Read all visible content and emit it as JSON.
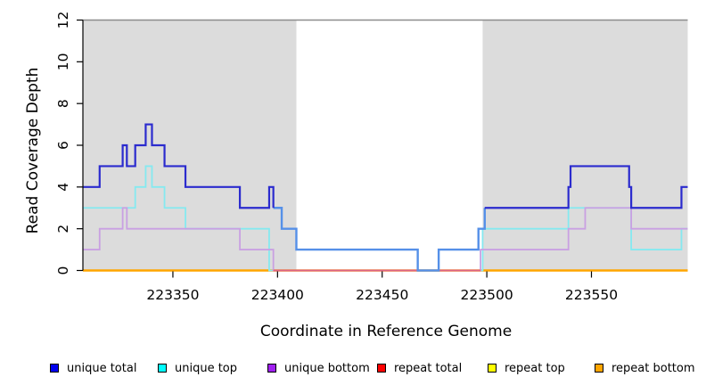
{
  "chart_data": {
    "type": "line",
    "subtype": "step",
    "title": "",
    "xlabel": "Coordinate in Reference Genome",
    "ylabel": "Read Coverage Depth",
    "x_range": [
      223307,
      223596
    ],
    "y_range": [
      0,
      12
    ],
    "x_ticks": [
      223350,
      223400,
      223450,
      223500,
      223550
    ],
    "y_ticks": [
      0,
      2,
      4,
      6,
      8,
      10,
      12
    ],
    "grid": false,
    "legend_position": "bottom",
    "top_border_color": "#8C8C8C",
    "shaded_regions": [
      {
        "x0": 223307,
        "x1": 223409,
        "color": "#DCDCDC"
      },
      {
        "x0": 223498,
        "x1": 223596,
        "color": "#DCDCDC"
      }
    ],
    "series": [
      {
        "name": "repeat top",
        "color": "#FFFF00",
        "width": 2,
        "points": [
          [
            223307,
            0
          ],
          [
            223596,
            0
          ]
        ]
      },
      {
        "name": "repeat total",
        "color": "#FF0000",
        "width": 2,
        "points": [
          [
            223307,
            0
          ],
          [
            223596,
            0
          ]
        ]
      },
      {
        "name": "repeat bottom",
        "color": "#FFA500",
        "width": 2.5,
        "points": [
          [
            223307,
            0
          ],
          [
            223596,
            0
          ]
        ]
      },
      {
        "name": "unique top",
        "color": "#85E9F0",
        "width": 1.8,
        "points": [
          [
            223307,
            3
          ],
          [
            223332,
            4
          ],
          [
            223337,
            5
          ],
          [
            223340,
            4
          ],
          [
            223346,
            3
          ],
          [
            223356,
            2
          ],
          [
            223396,
            0
          ],
          [
            223498,
            2
          ],
          [
            223539,
            3
          ],
          [
            223569,
            1
          ],
          [
            223593,
            2
          ],
          [
            223596,
            2
          ]
        ]
      },
      {
        "name": "unique bottom",
        "color": "#C9A0E2",
        "width": 1.8,
        "points": [
          [
            223307,
            1
          ],
          [
            223315,
            2
          ],
          [
            223326,
            3
          ],
          [
            223328,
            2
          ],
          [
            223382,
            1
          ],
          [
            223398,
            0
          ],
          [
            223497,
            1
          ],
          [
            223539,
            2
          ],
          [
            223547,
            3
          ],
          [
            223569,
            2
          ],
          [
            223596,
            2
          ]
        ]
      },
      {
        "name": "unmasked region zero baseline",
        "color": "#DC6484",
        "width": 2,
        "points": [
          [
            223398,
            0
          ],
          [
            223497,
            0
          ]
        ]
      },
      {
        "name": "unique total (center segment)",
        "color": "#5590E8",
        "width": 2.4,
        "points": [
          [
            223398,
            3
          ],
          [
            223402,
            2
          ],
          [
            223409,
            1
          ],
          [
            223467,
            0
          ],
          [
            223477,
            1
          ],
          [
            223496,
            2
          ],
          [
            223499,
            3
          ]
        ]
      },
      {
        "name": "unique total (left segment)",
        "color": "#2B2BCE",
        "width": 2.2,
        "points": [
          [
            223307,
            4
          ],
          [
            223315,
            5
          ],
          [
            223326,
            6
          ],
          [
            223328,
            5
          ],
          [
            223332,
            6
          ],
          [
            223337,
            7
          ],
          [
            223340,
            6
          ],
          [
            223346,
            5
          ],
          [
            223356,
            4
          ],
          [
            223382,
            3
          ],
          [
            223396,
            4
          ],
          [
            223398,
            3
          ]
        ]
      },
      {
        "name": "unique total (right segment)",
        "color": "#2B2BCE",
        "width": 2.2,
        "points": [
          [
            223499,
            3
          ],
          [
            223539,
            4
          ],
          [
            223540,
            5
          ],
          [
            223568,
            4
          ],
          [
            223569,
            3
          ],
          [
            223593,
            4
          ],
          [
            223596,
            4
          ]
        ]
      }
    ],
    "legend": {
      "items": [
        {
          "label": "unique total",
          "color": "#0000EE"
        },
        {
          "label": "unique top",
          "color": "#00FFFF"
        },
        {
          "label": "unique bottom",
          "color": "#A020F0"
        },
        {
          "label": "repeat total",
          "color": "#FF0000"
        },
        {
          "label": "repeat top",
          "color": "#FFFF00"
        },
        {
          "label": "repeat bottom",
          "color": "#FFA500"
        }
      ]
    }
  }
}
